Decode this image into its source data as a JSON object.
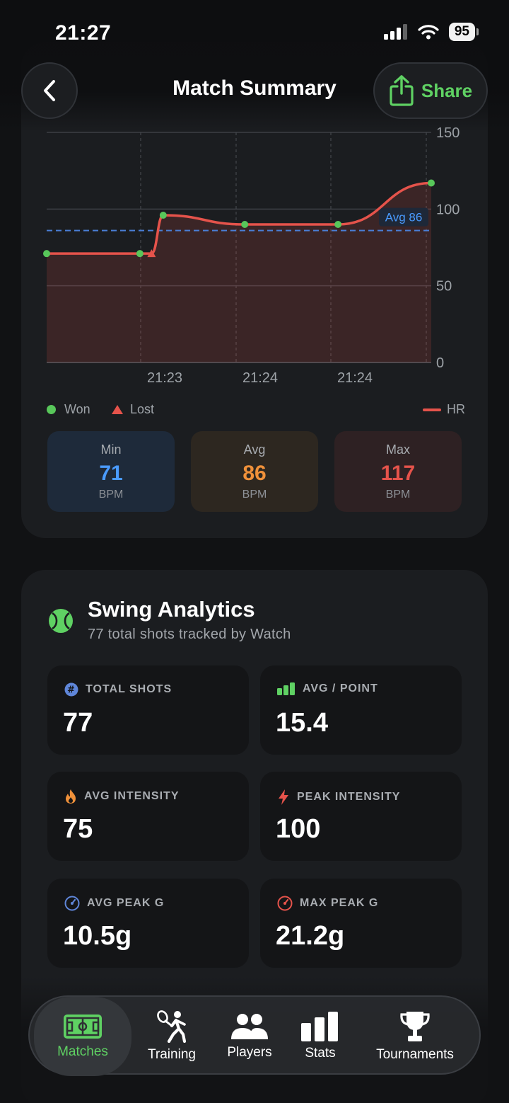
{
  "status_bar": {
    "time": "21:27",
    "battery": "95"
  },
  "header": {
    "title": "Match Summary",
    "share_label": "Share"
  },
  "heart_rate": {
    "chart_data": {
      "type": "line",
      "x": [
        "21:22:15",
        "21:22:55",
        "21:23:00",
        "21:23:05",
        "21:23:40",
        "21:24:20",
        "21:25:00"
      ],
      "y": [
        71,
        71,
        71,
        96,
        90,
        90,
        117
      ],
      "point_outcomes": [
        "won",
        "won",
        "lost",
        "won",
        "won",
        "won",
        "won"
      ],
      "x_tick_labels": [
        "21:23",
        "21:24",
        "21:24"
      ],
      "y_ticks": [
        0,
        50,
        100,
        150
      ],
      "ylim": [
        0,
        150
      ],
      "average": 86,
      "average_label": "Avg 86",
      "series": [
        {
          "name": "HR",
          "color": "#e5534b"
        }
      ],
      "grid": true,
      "legend_position": "bottom"
    },
    "legend": {
      "won": "Won",
      "lost": "Lost",
      "hr": "HR"
    },
    "stats": [
      {
        "label": "Min",
        "value": "71",
        "unit": "BPM",
        "color": "#4a9bff",
        "bg": "#1e2a3a"
      },
      {
        "label": "Avg",
        "value": "86",
        "unit": "BPM",
        "color": "#f0913a",
        "bg": "#2d2720"
      },
      {
        "label": "Max",
        "value": "117",
        "unit": "BPM",
        "color": "#e5534b",
        "bg": "#2e2123"
      }
    ]
  },
  "swing": {
    "title": "Swing Analytics",
    "subtitle": "77 total shots tracked by Watch",
    "tiles": [
      {
        "label": "TOTAL SHOTS",
        "value": "77",
        "icon": "hash-icon",
        "color": "#5f86d9"
      },
      {
        "label": "AVG / POINT",
        "value": "15.4",
        "icon": "bars-icon",
        "color": "#5fd163"
      },
      {
        "label": "AVG INTENSITY",
        "value": "75",
        "icon": "flame-icon",
        "color": "#f0913a"
      },
      {
        "label": "PEAK INTENSITY",
        "value": "100",
        "icon": "bolt-icon",
        "color": "#e5534b"
      },
      {
        "label": "AVG PEAK G",
        "value": "10.5g",
        "icon": "gauge-icon",
        "color": "#5f86d9"
      },
      {
        "label": "MAX PEAK G",
        "value": "21.2g",
        "icon": "gauge-icon",
        "color": "#e5534b"
      }
    ]
  },
  "tabs": [
    {
      "label": "Matches",
      "icon": "court-icon",
      "active": true
    },
    {
      "label": "Training",
      "icon": "tennis-player-icon",
      "active": false
    },
    {
      "label": "Players",
      "icon": "people-icon",
      "active": false
    },
    {
      "label": "Stats",
      "icon": "bar-chart-icon",
      "active": false
    },
    {
      "label": "Tournaments",
      "icon": "trophy-icon",
      "active": false
    }
  ]
}
